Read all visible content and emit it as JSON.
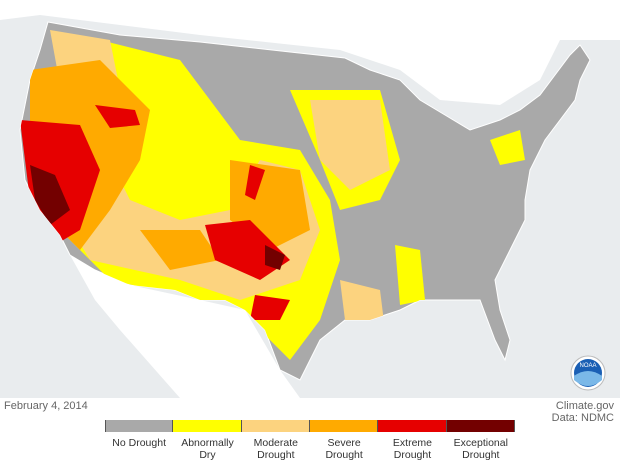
{
  "date": "February 4, 2014",
  "credit": [
    "Climate.gov",
    "Data: NDMC"
  ],
  "logo": "NOAA",
  "legend": [
    {
      "label": "No Drought",
      "color": "#a9a9a9"
    },
    {
      "label": "Abnormally Dry",
      "color": "#ffff00"
    },
    {
      "label": "Moderate Drought",
      "color": "#fcd37f"
    },
    {
      "label": "Severe Drought",
      "color": "#ffaa00"
    },
    {
      "label": "Extreme Drought",
      "color": "#e60000"
    },
    {
      "label": "Exceptional Drought",
      "color": "#730000"
    }
  ]
}
